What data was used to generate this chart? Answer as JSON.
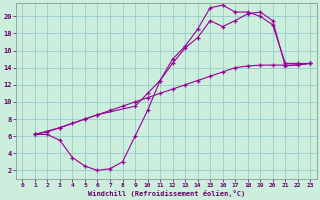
{
  "xlabel": "Windchill (Refroidissement éolien,°C)",
  "background_color": "#cceedd",
  "grid_color": "#99cccc",
  "line_color": "#990099",
  "xlim": [
    -0.5,
    23.5
  ],
  "ylim": [
    1,
    21.5
  ],
  "xticks": [
    0,
    1,
    2,
    3,
    4,
    5,
    6,
    7,
    8,
    9,
    10,
    11,
    12,
    13,
    14,
    15,
    16,
    17,
    18,
    19,
    20,
    21,
    22,
    23
  ],
  "yticks": [
    2,
    4,
    6,
    8,
    10,
    12,
    14,
    16,
    18,
    20
  ],
  "curve1_x": [
    1,
    2,
    3,
    4,
    5,
    6,
    7,
    8,
    9,
    10,
    11,
    12,
    13,
    14,
    15,
    16,
    17,
    18,
    19,
    20,
    21,
    22,
    23
  ],
  "curve1_y": [
    6.2,
    6.2,
    5.5,
    3.5,
    2.5,
    2.0,
    2.2,
    3.0,
    6.0,
    9.0,
    12.5,
    15.0,
    16.5,
    18.5,
    21.0,
    21.3,
    20.5,
    20.5,
    20.0,
    19.0,
    14.5,
    14.5,
    14.5
  ],
  "curve2_x": [
    1,
    2,
    3,
    4,
    5,
    6,
    7,
    8,
    9,
    10,
    11,
    12,
    13,
    14,
    15,
    16,
    17,
    18,
    19,
    20,
    21,
    22,
    23
  ],
  "curve2_y": [
    6.2,
    6.5,
    7.0,
    7.5,
    8.0,
    8.5,
    9.0,
    9.5,
    10.0,
    10.5,
    11.0,
    11.5,
    12.0,
    12.5,
    13.0,
    13.5,
    14.0,
    14.2,
    14.3,
    14.3,
    14.3,
    14.3,
    14.5
  ],
  "curve3_x": [
    1,
    3,
    5,
    6,
    9,
    10,
    11,
    12,
    13,
    14,
    15,
    16,
    17,
    18,
    19,
    20,
    21,
    23
  ],
  "curve3_y": [
    6.2,
    7.0,
    8.0,
    8.5,
    9.5,
    11.0,
    12.5,
    14.5,
    16.3,
    17.5,
    19.5,
    18.8,
    19.5,
    20.3,
    20.5,
    19.5,
    14.2,
    14.5
  ]
}
